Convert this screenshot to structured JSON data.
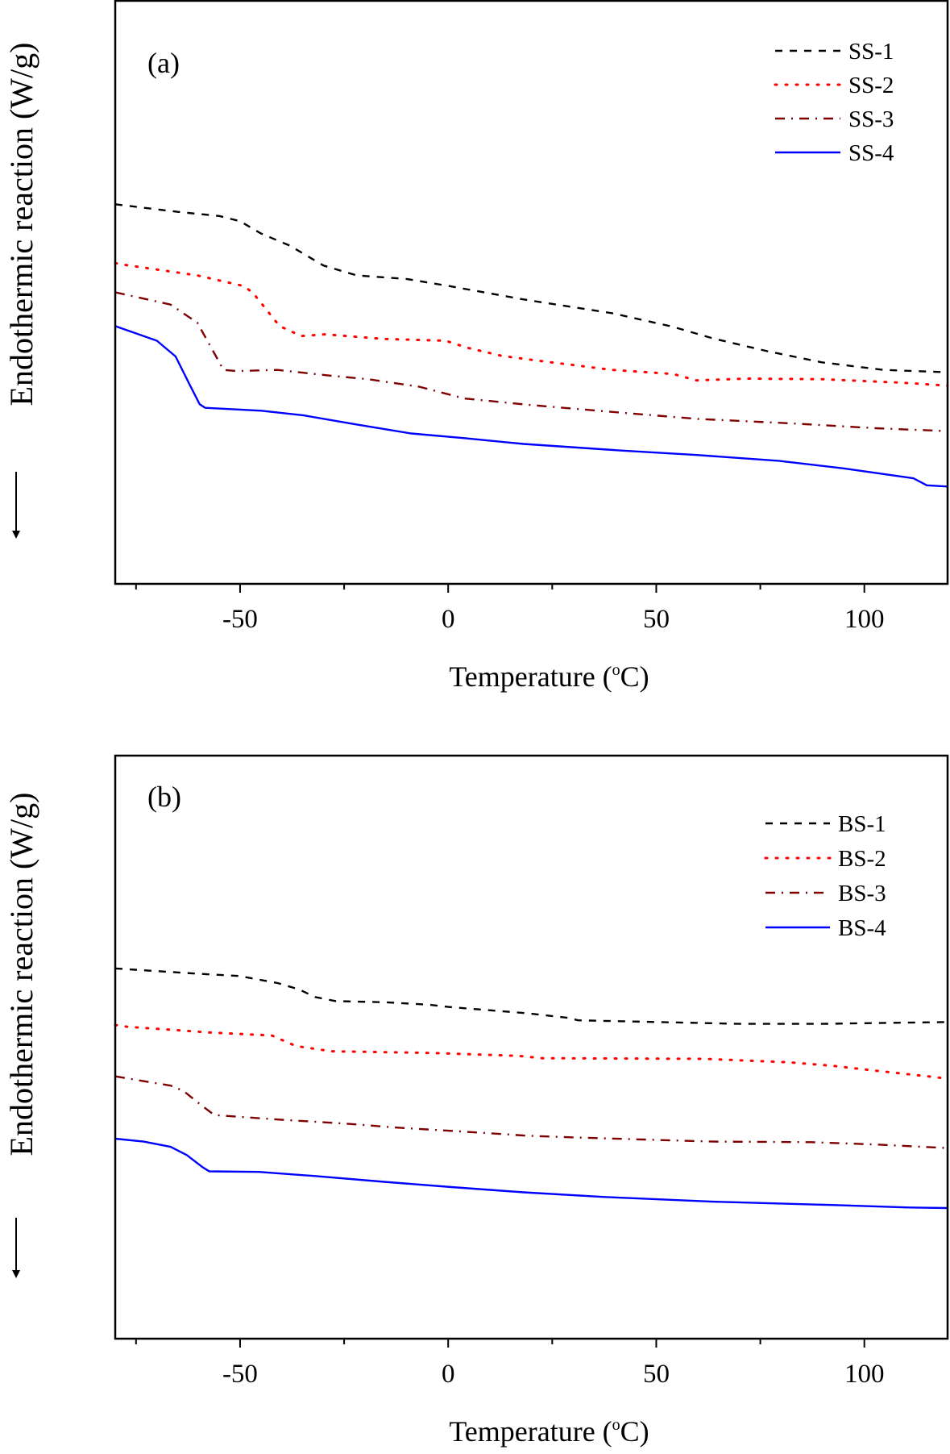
{
  "chart_data": [
    {
      "type": "line",
      "panel_label": "(a)",
      "xlabel": "Temperature (°C)",
      "xlabel_main": "Temperature (",
      "xlabel_unit_sup": "o",
      "xlabel_unit_tail": "C)",
      "ylabel": "Endothermic reaction (W/g)",
      "ylabel_note": "arrow pointing down (endothermic direction)",
      "xlim": [
        -80,
        120
      ],
      "ylim": [
        0,
        100
      ],
      "y_units": "relative heat flow (arbitrary, no y tick labels shown)",
      "x_ticks_major": [
        -50,
        0,
        50,
        100
      ],
      "x_tick_labels": [
        "-50",
        "0",
        "50",
        "100"
      ],
      "x_ticks_minor": [
        -75,
        -25,
        25,
        75
      ],
      "grid": false,
      "legend_position": "top-right",
      "series": [
        {
          "name": "SS-1",
          "color": "#000000",
          "style": "dashed",
          "x": [
            -80,
            -65,
            -55,
            -50,
            -45,
            -38,
            -30,
            -22,
            -10,
            0,
            18,
            39.5,
            54,
            63.6,
            76.7,
            89.8,
            104.6,
            120
          ],
          "y": [
            65.1,
            63.8,
            63.1,
            62.2,
            60.1,
            58.0,
            54.6,
            52.9,
            52.3,
            51.1,
            48.8,
            46.4,
            44.1,
            42.1,
            39.9,
            38.0,
            36.7,
            36.3
          ]
        },
        {
          "name": "SS-2",
          "color": "#ff0000",
          "style": "dotted",
          "x": [
            -80,
            -77.6,
            -60.3,
            -49.3,
            -47,
            -40.5,
            -35.3,
            -29.5,
            -15.4,
            -0.6,
            4.6,
            12.9,
            21.4,
            39.5,
            54,
            59.7,
            71.5,
            89.8,
            109.2,
            120
          ],
          "y": [
            55.0,
            54.7,
            52.9,
            51.1,
            50.0,
            44.2,
            42.5,
            42.8,
            42.0,
            41.7,
            40.5,
            39.1,
            38.3,
            36.7,
            36.0,
            34.9,
            35.2,
            35.1,
            34.5,
            34.0
          ]
        },
        {
          "name": "SS-3",
          "color": "#7f0000",
          "style": "dash-dot",
          "x": [
            -80,
            -66.7,
            -60.3,
            -57,
            -54,
            -50.7,
            -41,
            -29.5,
            -19.3,
            -6.9,
            3.9,
            19.3,
            37.6,
            59.7,
            83.2,
            102.7,
            120
          ],
          "y": [
            50.0,
            47.9,
            44.8,
            40.6,
            36.7,
            36.5,
            36.7,
            35.8,
            35.1,
            33.8,
            31.8,
            30.7,
            29.6,
            28.3,
            27.5,
            26.7,
            26.2
          ]
        },
        {
          "name": "SS-4",
          "color": "#0000ff",
          "style": "solid",
          "x": [
            -80,
            -70,
            -65.5,
            -62.2,
            -59.7,
            -58.4,
            -44.9,
            -34.7,
            -21.8,
            -8.9,
            3.9,
            18.1,
            40.8,
            59.7,
            79.4,
            95,
            111.8,
            115,
            120
          ],
          "y": [
            44.2,
            41.7,
            39.0,
            34.3,
            30.8,
            30.2,
            29.7,
            28.9,
            27.3,
            25.8,
            25.0,
            24.0,
            22.9,
            22.1,
            21.1,
            19.8,
            18.1,
            16.9,
            16.7
          ]
        }
      ]
    },
    {
      "type": "line",
      "panel_label": "(b)",
      "xlabel": "Temperature (°C)",
      "xlabel_main": "Temperature (",
      "xlabel_unit_sup": "o",
      "xlabel_unit_tail": "C)",
      "ylabel": "Endothermic reaction (W/g)",
      "ylabel_note": "arrow pointing down (endothermic direction)",
      "xlim": [
        -80,
        120
      ],
      "ylim": [
        0,
        100
      ],
      "y_units": "relative heat flow (arbitrary, no y tick labels shown)",
      "x_ticks_major": [
        -50,
        0,
        50,
        100
      ],
      "x_tick_labels": [
        "-50",
        "0",
        "50",
        "100"
      ],
      "x_ticks_minor": [
        -75,
        -25,
        25,
        75
      ],
      "grid": false,
      "legend_position": "top-right",
      "series": [
        {
          "name": "BS-1",
          "color": "#000000",
          "style": "dashed",
          "x": [
            -80,
            -60.3,
            -50.1,
            -41,
            -35.8,
            -32,
            -27,
            -15.4,
            -5,
            0,
            19.3,
            29.1,
            31.2,
            70.1,
            89.8,
            120
          ],
          "y": [
            63.5,
            62.6,
            62.2,
            61.0,
            59.9,
            58.6,
            57.9,
            57.7,
            57.3,
            56.9,
            55.8,
            55.0,
            54.6,
            54.0,
            54.0,
            54.3
          ]
        },
        {
          "name": "BS-2",
          "color": "#ff0000",
          "style": "dotted",
          "x": [
            -80,
            -77.1,
            -57,
            -42.4,
            -36.6,
            -28.1,
            -3.9,
            16.8,
            22.7,
            61.7,
            81.9,
            92.3,
            103.5,
            117.7,
            120
          ],
          "y": [
            53.8,
            53.5,
            52.5,
            52.0,
            50.2,
            49.3,
            49.0,
            48.5,
            48.1,
            48.0,
            47.4,
            46.8,
            45.9,
            44.8,
            44.6
          ]
        },
        {
          "name": "BS-3",
          "color": "#7f0000",
          "style": "dash-dot",
          "x": [
            -80,
            -66.7,
            -63.6,
            -60.3,
            -56.5,
            -55.1,
            -41,
            -25,
            -12.1,
            3.9,
            19.3,
            31.2,
            63.6,
            87.1,
            102.7,
            120
          ],
          "y": [
            45.0,
            43.4,
            42.5,
            40.6,
            38.5,
            38.3,
            37.6,
            36.9,
            36.2,
            35.5,
            34.8,
            34.5,
            33.8,
            33.7,
            33.3,
            32.7
          ]
        },
        {
          "name": "BS-4",
          "color": "#0000ff",
          "style": "solid",
          "x": [
            -80,
            -73.2,
            -66.7,
            -62.8,
            -59,
            -57.4,
            -45.5,
            -32,
            -15.4,
            0.8,
            18.1,
            37.6,
            63.6,
            93.6,
            110.6,
            120
          ],
          "y": [
            34.3,
            33.8,
            32.9,
            31.5,
            29.4,
            28.7,
            28.6,
            27.9,
            26.9,
            26.0,
            25.1,
            24.3,
            23.5,
            22.9,
            22.5,
            22.4
          ]
        }
      ]
    }
  ]
}
